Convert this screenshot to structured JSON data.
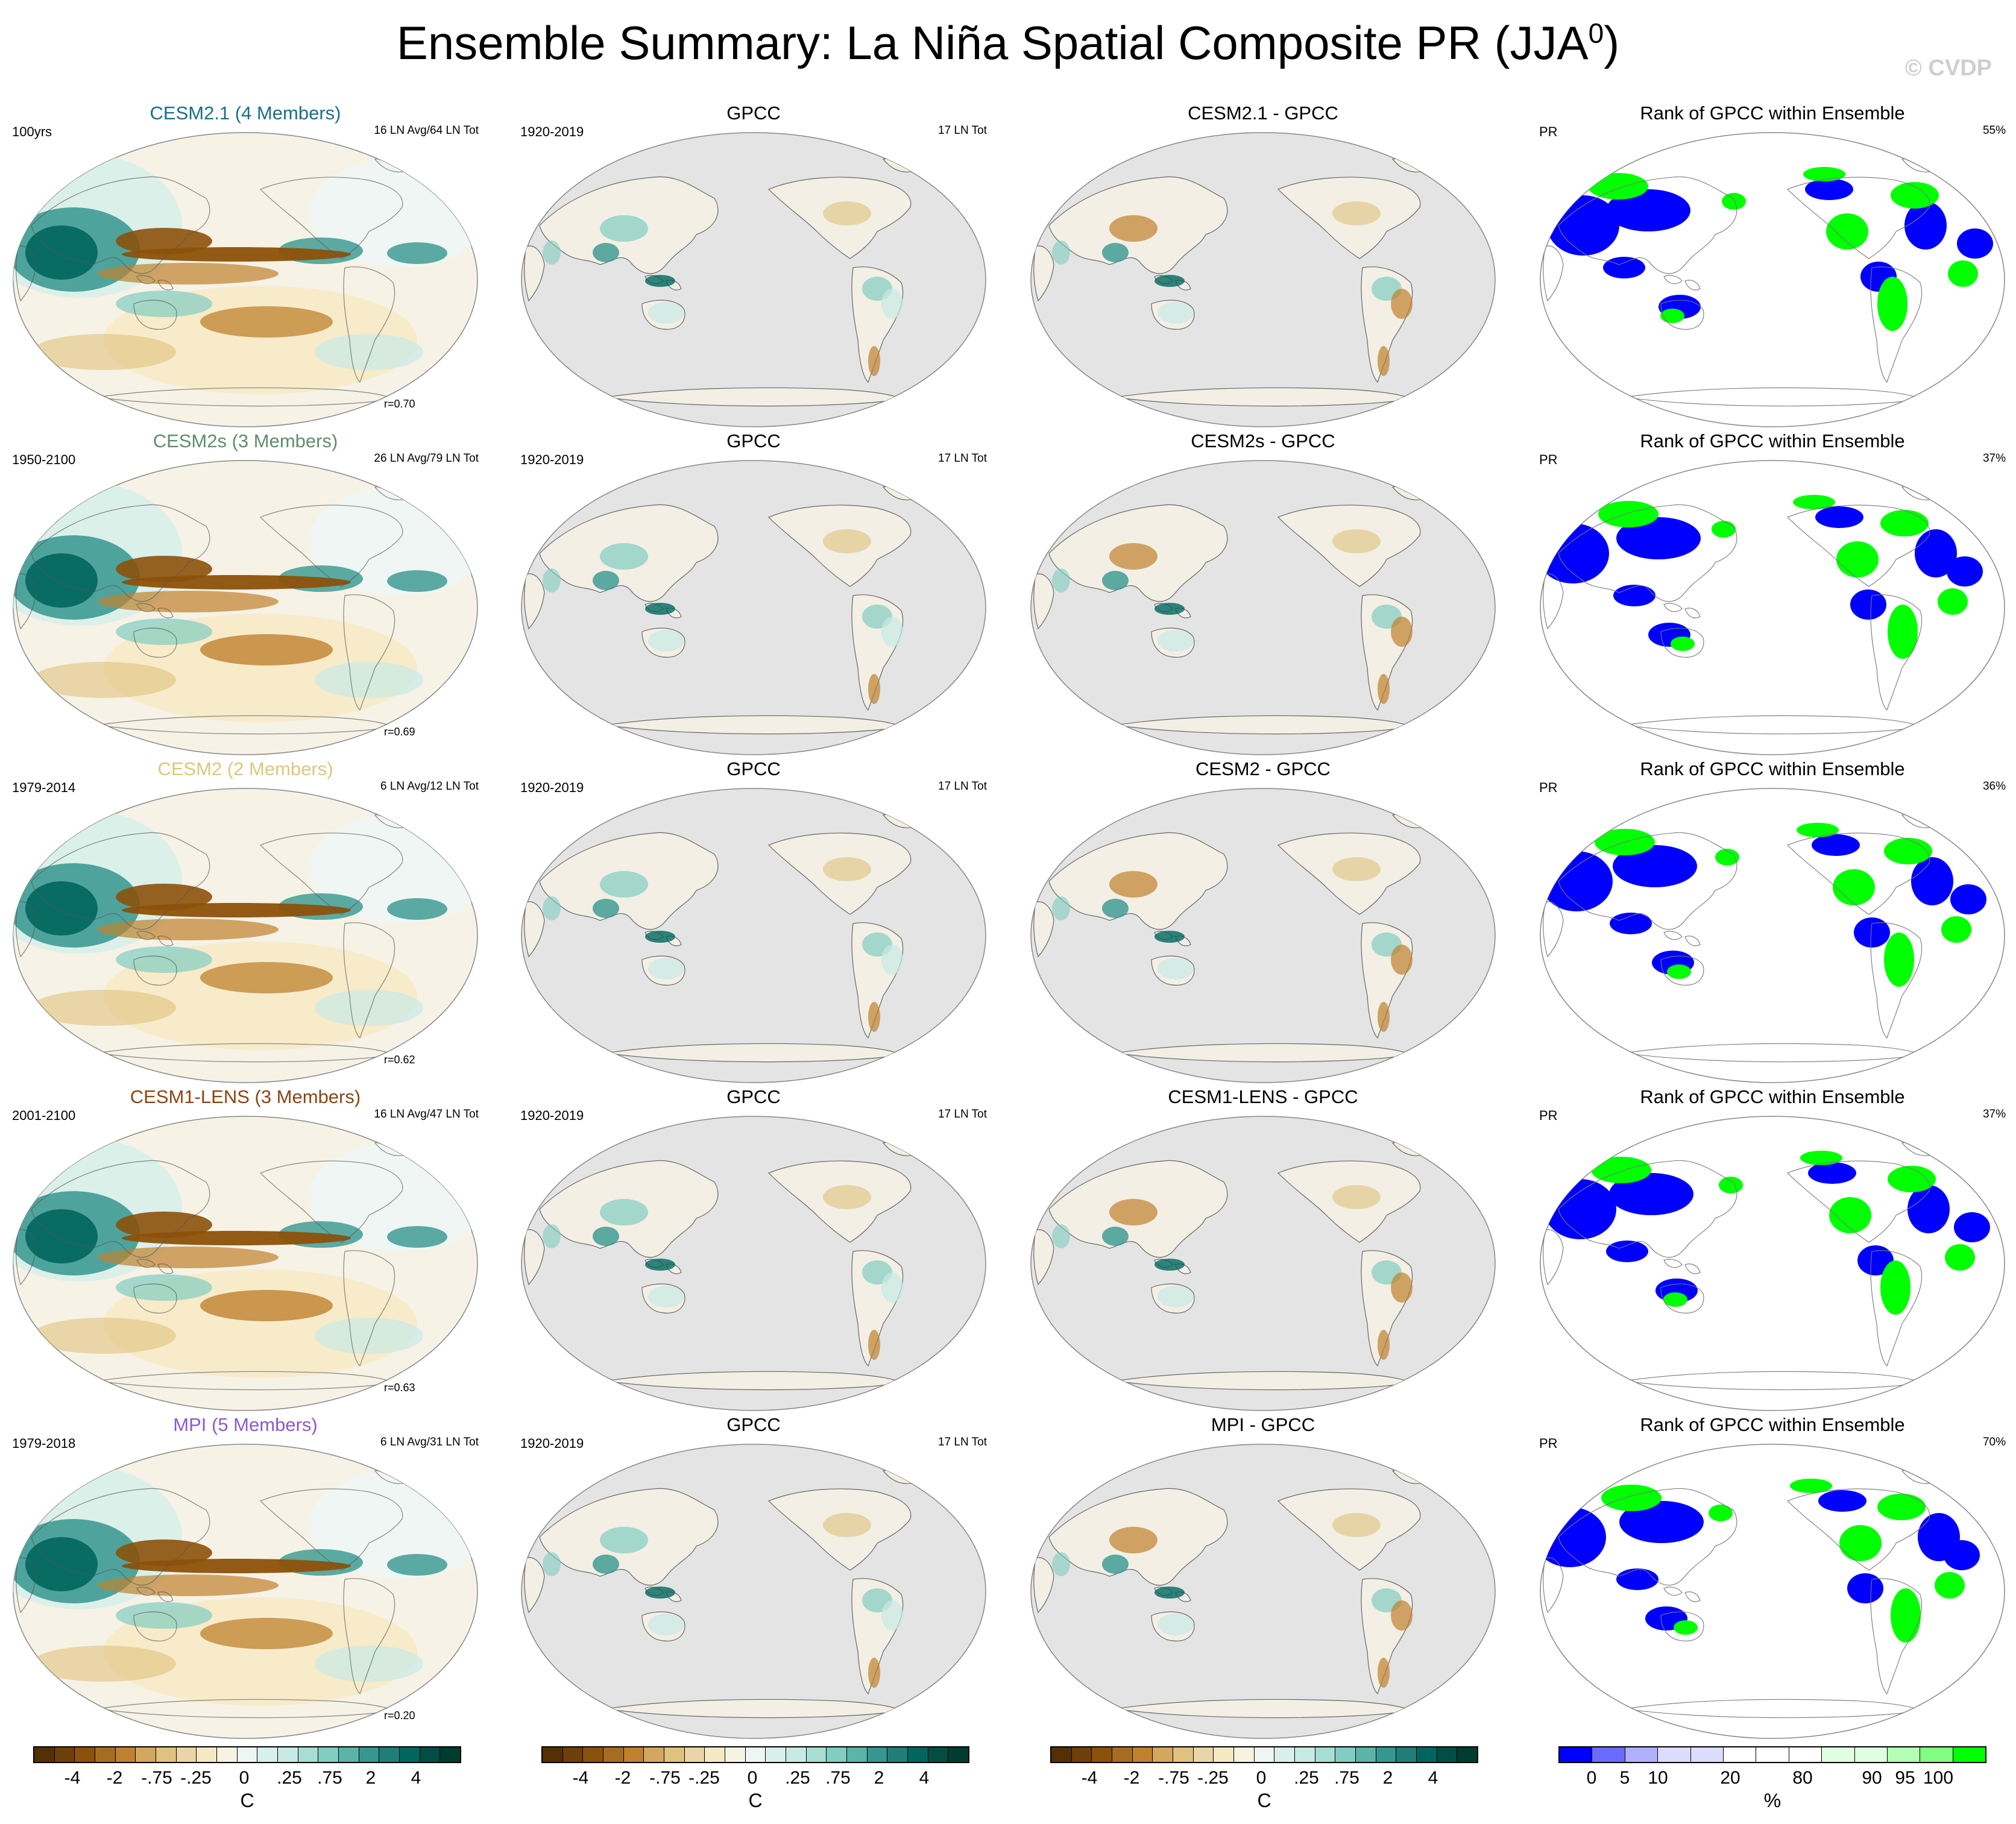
{
  "title": {
    "main": "Ensemble Summary: La Niña Spatial Composite PR (JJA",
    "sup": "0",
    "close": ")"
  },
  "watermark": "© CVDP",
  "colors": {
    "ocean_gray": "#e4e4e4",
    "land_beige": "#f3efe4",
    "blue": "#0000ff",
    "green": "#00ff00"
  },
  "rows": [
    {
      "model": {
        "title": "CESM2.1 (4 Members)",
        "title_color": "#1a6e8a",
        "years": "100yrs",
        "stats": "16 LN Avg/64 LN Tot",
        "r": "r=0.70"
      },
      "obs": {
        "title": "GPCC",
        "years": "1920-2019",
        "stats": "17 LN Tot"
      },
      "diff": {
        "title": "CESM2.1 - GPCC"
      },
      "rank": {
        "title": "Rank of GPCC within Ensemble",
        "var": "PR",
        "pct": "55%"
      }
    },
    {
      "model": {
        "title": "CESM2s (3 Members)",
        "title_color": "#5d8f6b",
        "years": "1950-2100",
        "stats": "26 LN Avg/79 LN Tot",
        "r": "r=0.69"
      },
      "obs": {
        "title": "GPCC",
        "years": "1920-2019",
        "stats": "17 LN Tot"
      },
      "diff": {
        "title": "CESM2s - GPCC"
      },
      "rank": {
        "title": "Rank of GPCC within Ensemble",
        "var": "PR",
        "pct": "37%"
      }
    },
    {
      "model": {
        "title": "CESM2 (2 Members)",
        "title_color": "#dcc77e",
        "years": "1979-2014",
        "stats": "6 LN Avg/12 LN Tot",
        "r": "r=0.62"
      },
      "obs": {
        "title": "GPCC",
        "years": "1920-2019",
        "stats": "17 LN Tot"
      },
      "diff": {
        "title": "CESM2 - GPCC"
      },
      "rank": {
        "title": "Rank of GPCC within Ensemble",
        "var": "PR",
        "pct": "36%"
      }
    },
    {
      "model": {
        "title": "CESM1-LENS (3 Members)",
        "title_color": "#8b4513",
        "years": "2001-2100",
        "stats": "16 LN Avg/47 LN Tot",
        "r": "r=0.63"
      },
      "obs": {
        "title": "GPCC",
        "years": "1920-2019",
        "stats": "17 LN Tot"
      },
      "diff": {
        "title": "CESM1-LENS - GPCC"
      },
      "rank": {
        "title": "Rank of GPCC within Ensemble",
        "var": "PR",
        "pct": "37%"
      }
    },
    {
      "model": {
        "title": "MPI (5 Members)",
        "title_color": "#8a5ad0",
        "years": "1979-2018",
        "stats": "6 LN Avg/31 LN Tot",
        "r": "r=0.20"
      },
      "obs": {
        "title": "GPCC",
        "years": "1920-2019",
        "stats": "17 LN Tot"
      },
      "diff": {
        "title": "MPI - GPCC"
      },
      "rank": {
        "title": "Rank of GPCC within Ensemble",
        "var": "PR",
        "pct": "70%"
      }
    }
  ],
  "colorbar_bwr": {
    "colors": [
      "#543005",
      "#6f3f0a",
      "#8c510a",
      "#a86c20",
      "#bf812d",
      "#d4a65e",
      "#dfc27d",
      "#ead5a8",
      "#f6e8c3",
      "#f8f2e2",
      "#eef6f4",
      "#d8efea",
      "#c7eae5",
      "#a8ddd3",
      "#80cdc1",
      "#5ab4a8",
      "#35978f",
      "#1f7f77",
      "#01665e",
      "#024e45",
      "#003c30"
    ],
    "ticks": [
      "-4",
      "-2",
      "-.75",
      "-.25",
      "0",
      ".25",
      ".75",
      "2",
      "4"
    ],
    "unit": "C"
  },
  "colorbar_rank": {
    "colors": [
      "#0000ff",
      "#6b6bff",
      "#b0b0ff",
      "#dcdcff",
      "#dcdcff",
      "#ffffff",
      "#ffffff",
      "#ffffff",
      "#e0ffe0",
      "#e0ffe0",
      "#b3ffb3",
      "#80ff80",
      "#00ff00"
    ],
    "ticks": [
      "0",
      "5",
      "10",
      "20",
      "80",
      "90",
      "95",
      "100"
    ],
    "unit": "%"
  }
}
